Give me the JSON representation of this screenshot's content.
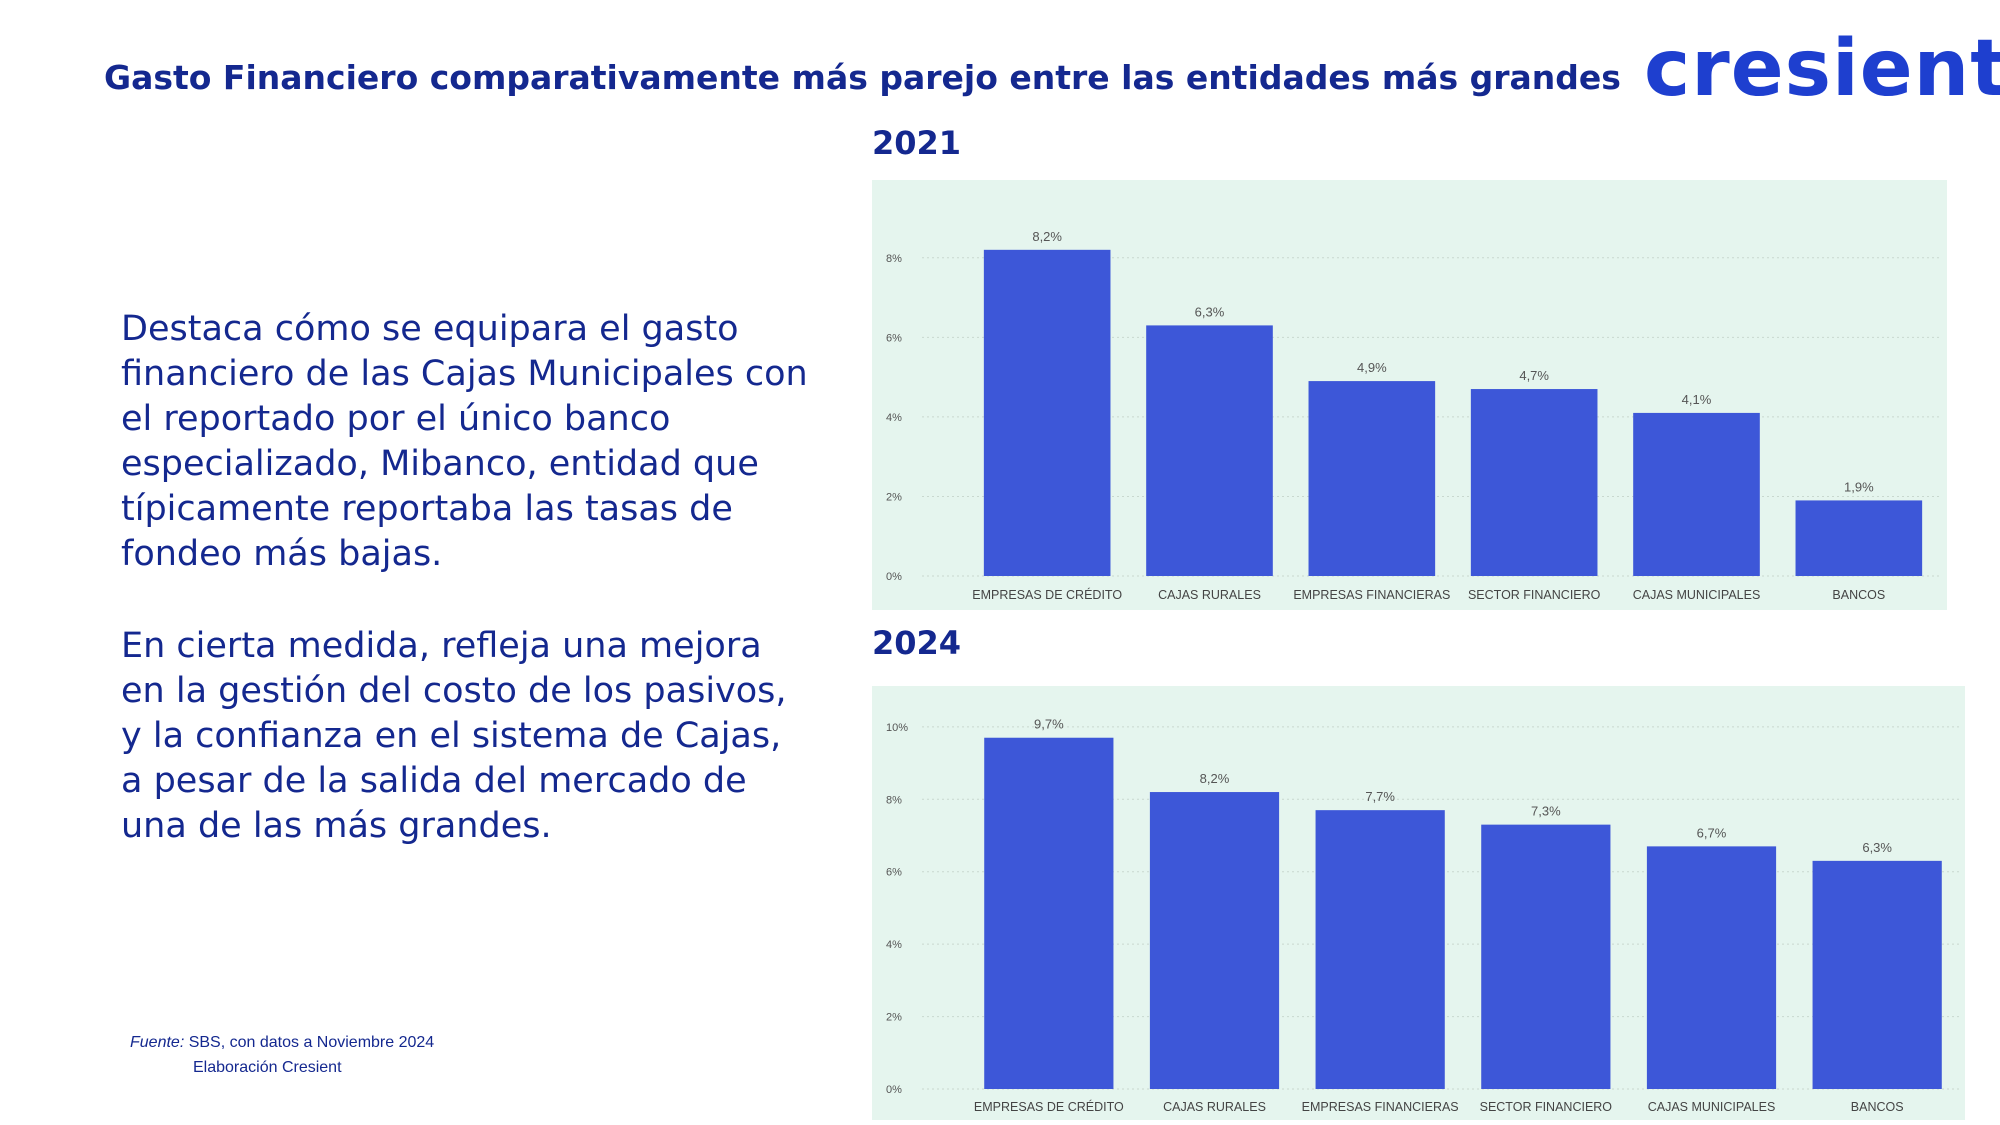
{
  "page": {
    "title": "Gasto Financiero comparativamente más parejo entre las entidades más grandes",
    "logo": "cresient",
    "paragraph1": "Destaca cómo se equipara el gasto financiero de las Cajas Municipales con el reportado por el único banco especializado, Mibanco, entidad que típicamente reportaba las tasas de fondeo más bajas.",
    "paragraph2": "En cierta medida, refleja una mejora en la gestión del costo de los pasivos, y la confianza en el sistema de Cajas, a pesar de la salida del mercado de una de las más grandes.",
    "source_label": "Fuente:",
    "source_text": " SBS, con datos a Noviembre 2024",
    "source_line2": "Elaboración Cresient"
  },
  "colors": {
    "bar": "#3d57d8",
    "panel": "#e5f5ee",
    "text": "#14288f"
  },
  "chart_data": [
    {
      "type": "bar",
      "title": "2021",
      "categories": [
        "EMPRESAS DE CRÉDITO",
        "CAJAS RURALES",
        "EMPRESAS FINANCIERAS",
        "SECTOR FINANCIERO",
        "CAJAS MUNICIPALES",
        "BANCOS"
      ],
      "values": [
        8.2,
        6.3,
        4.9,
        4.7,
        4.1,
        1.9
      ],
      "data_labels": [
        "8,2%",
        "6,3%",
        "4,9%",
        "4,7%",
        "4,1%",
        "1,9%"
      ],
      "yticks": [
        0,
        2,
        4,
        6,
        8
      ],
      "ytick_labels": [
        "0%",
        "2%",
        "4%",
        "6%",
        "8%"
      ],
      "ylim": [
        0,
        9
      ],
      "grid": true
    },
    {
      "type": "bar",
      "title": "2024",
      "categories": [
        "EMPRESAS DE CRÉDITO",
        "CAJAS RURALES",
        "EMPRESAS FINANCIERAS",
        "SECTOR FINANCIERO",
        "CAJAS MUNICIPALES",
        "BANCOS"
      ],
      "values": [
        9.7,
        8.2,
        7.7,
        7.3,
        6.7,
        6.3
      ],
      "data_labels": [
        "9,7%",
        "8,2%",
        "7,7%",
        "7,3%",
        "6,7%",
        "6,3%"
      ],
      "yticks": [
        0,
        2,
        4,
        6,
        8,
        10
      ],
      "ytick_labels": [
        "0%",
        "2%",
        "4%",
        "6%",
        "8%",
        "10%"
      ],
      "ylim": [
        0,
        10.3
      ],
      "grid": true
    }
  ]
}
